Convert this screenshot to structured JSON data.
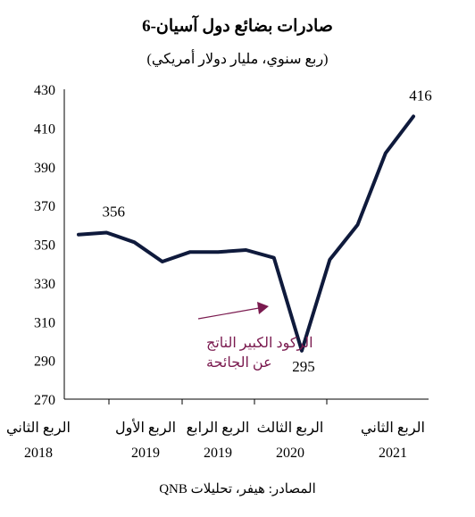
{
  "title": "صادرات بضائع دول آسيان-6",
  "subtitle": "(ربع سنوي، مليار دولار أمريكي)",
  "source": "المصادر: هيفر، تحليلات QNB",
  "chart_data": {
    "type": "line",
    "title": "صادرات بضائع دول آسيان-6",
    "subtitle": "(ربع سنوي، مليار دولار أمريكي)",
    "ylim": [
      270,
      430
    ],
    "yticks": [
      270,
      290,
      310,
      330,
      350,
      370,
      390,
      410,
      430
    ],
    "x_category_labels": [
      {
        "quarter": "الربع الثاني",
        "year": "2018"
      },
      {
        "quarter": "الربع الأول",
        "year": "2019"
      },
      {
        "quarter": "الربع الرابع",
        "year": "2019"
      },
      {
        "quarter": "الربع الثالث",
        "year": "2020"
      },
      {
        "quarter": "الربع الثاني",
        "year": "2021"
      }
    ],
    "series": [
      {
        "values": [
          355,
          356,
          351,
          341,
          346,
          346,
          347,
          343,
          295,
          342,
          360,
          397,
          416
        ]
      }
    ],
    "data_labels": [
      {
        "index": 1,
        "text": "356"
      },
      {
        "index": 8,
        "text": "295"
      },
      {
        "index": 12,
        "text": "416"
      }
    ],
    "annotation": {
      "lines": [
        "الركود الكبير الناتج",
        "عن الجائحة"
      ],
      "color": "#7a1a4f"
    },
    "line_color": "#0f1a3c",
    "grid": false
  }
}
